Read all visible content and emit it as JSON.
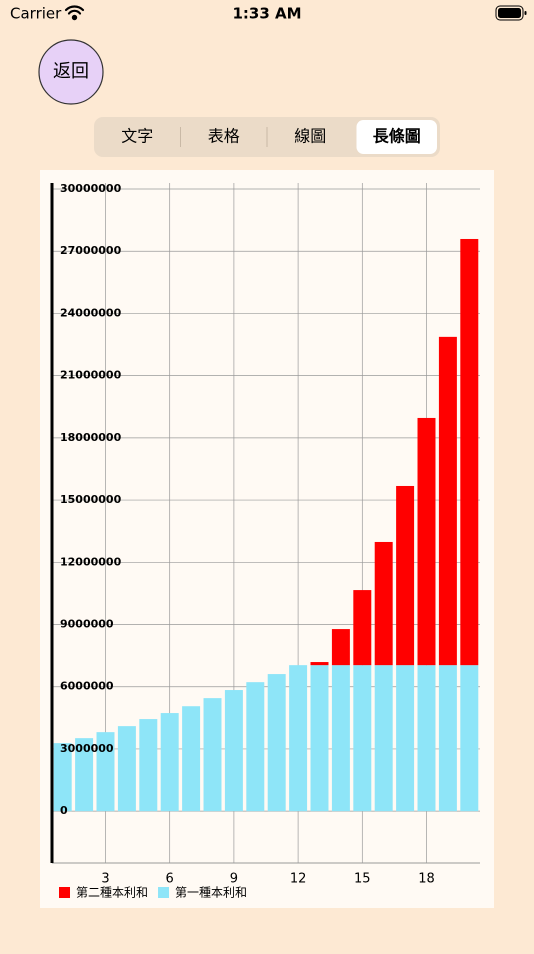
{
  "status": {
    "carrier": "Carrier",
    "time": "1:33 AM"
  },
  "back_button": "返回",
  "tabs": [
    {
      "label": "文字",
      "selected": false
    },
    {
      "label": "表格",
      "selected": false
    },
    {
      "label": "線圖",
      "selected": false
    },
    {
      "label": "長條圖",
      "selected": true
    }
  ],
  "chart_data": {
    "type": "bar",
    "stacked": true,
    "grid": true,
    "x": [
      1,
      2,
      3,
      4,
      5,
      6,
      7,
      8,
      9,
      10,
      11,
      12,
      13,
      14,
      15,
      16,
      17,
      18,
      19,
      20
    ],
    "xlim": [
      0.5,
      20.5
    ],
    "xticks": [
      3,
      6,
      9,
      12,
      15,
      18
    ],
    "ylim": [
      -2500000,
      30000000
    ],
    "yticks": [
      0,
      3000000,
      6000000,
      9000000,
      12000000,
      15000000,
      18000000,
      21000000,
      24000000,
      27000000,
      30000000
    ],
    "series": [
      {
        "name": "第二種本利和",
        "color": "#ff0000",
        "values": [
          0,
          0,
          0,
          0,
          0,
          0,
          0,
          0,
          0,
          0,
          0,
          0,
          150000,
          1740000,
          3620000,
          5940000,
          8640000,
          11920000,
          15830000,
          20550000
        ]
      },
      {
        "name": "第一種本利和",
        "color": "#8ee5f8",
        "values": [
          3280000,
          3520000,
          3810000,
          4100000,
          4440000,
          4730000,
          5060000,
          5450000,
          5840000,
          6220000,
          6610000,
          7040000,
          7040000,
          7040000,
          7040000,
          7040000,
          7040000,
          7040000,
          7040000,
          7040000
        ]
      }
    ]
  }
}
